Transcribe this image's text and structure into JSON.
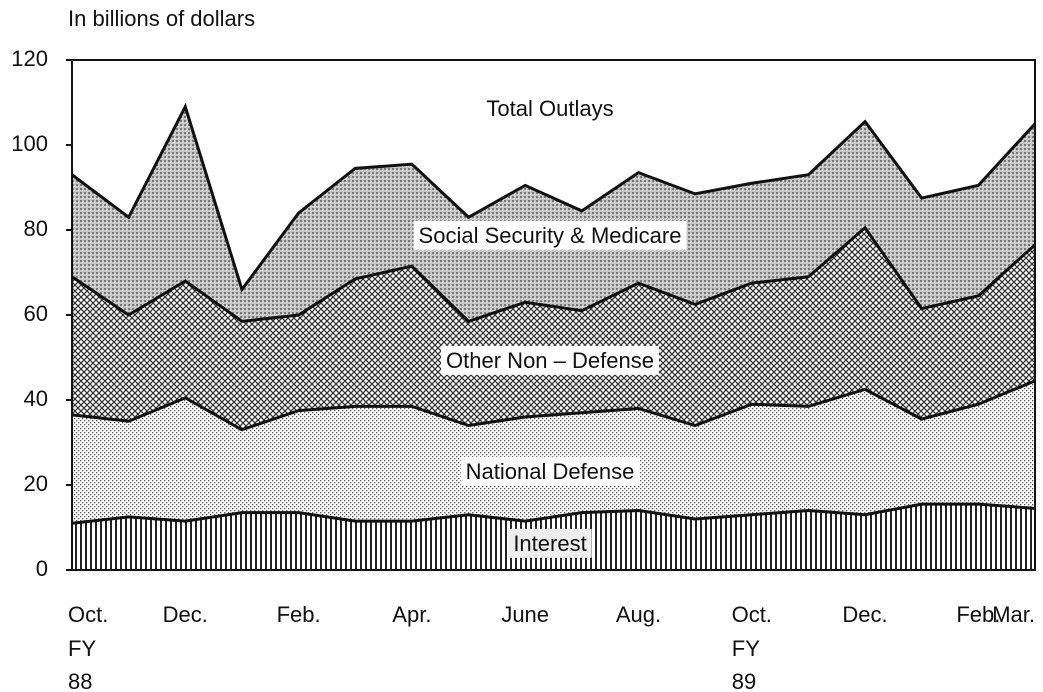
{
  "chart_data": {
    "type": "stacked_area",
    "y_axis_label": "In billions of dollars",
    "annotation": "Total Outlays",
    "categories": [
      "Oct.",
      null,
      "Dec.",
      null,
      "Feb.",
      null,
      "Apr.",
      null,
      "June",
      null,
      "Aug.",
      null,
      "Oct.",
      null,
      "Dec.",
      null,
      "Feb.",
      "Mar."
    ],
    "fiscal_year_labels": [
      {
        "index": 0,
        "lines": [
          "FY",
          "88"
        ]
      },
      {
        "index": 12,
        "lines": [
          "FY",
          "89"
        ]
      }
    ],
    "series": [
      {
        "name": "Interest",
        "color": "#222222",
        "values": [
          11,
          12.5,
          11.5,
          13.5,
          13.5,
          11.5,
          11.5,
          13,
          11.5,
          13.5,
          14,
          12,
          13,
          14,
          13,
          15.5,
          15.5,
          14.5
        ]
      },
      {
        "name": "National Defense",
        "color": "#555555",
        "values": [
          25.5,
          22.5,
          29,
          19.5,
          24,
          27,
          27,
          21,
          24.5,
          23.5,
          24,
          22,
          26,
          24.5,
          29.5,
          20,
          23.5,
          30
        ]
      },
      {
        "name": "Other Non – Defense",
        "color": "#333333",
        "values": [
          32.5,
          25,
          27.5,
          25.5,
          22.5,
          30,
          33,
          24.5,
          27,
          24,
          29.5,
          28.5,
          28.5,
          30.5,
          38,
          26,
          25.5,
          32
        ]
      },
      {
        "name": "Social Security & Medicare",
        "color": "#777777",
        "values": [
          24,
          23,
          41,
          7.5,
          24,
          26,
          24,
          24.5,
          27.5,
          23.5,
          26,
          26,
          23.5,
          24,
          25,
          26,
          26,
          28.5
        ]
      }
    ],
    "ylim": [
      0,
      120
    ],
    "yticks": [
      0,
      20,
      40,
      60,
      80,
      100,
      120
    ]
  }
}
